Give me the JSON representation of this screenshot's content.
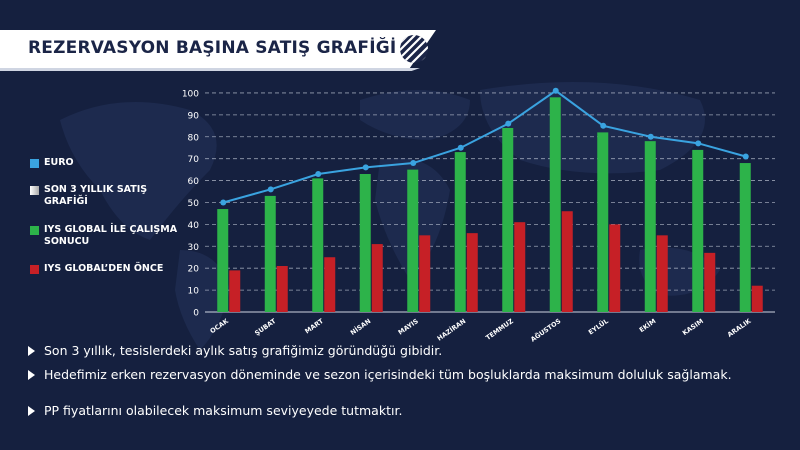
{
  "header": {
    "title": "REZERVASYON BAŞINA SATIŞ GRAFİĞİ"
  },
  "icons": {
    "logo": "globe-logo-icon"
  },
  "legend": [
    {
      "label": "EURO",
      "color": "#3aa3e0"
    },
    {
      "label": "SON 3 YILLIK SATIŞ GRAFİĞİ",
      "color": "#d9d9d9"
    },
    {
      "label": "IYS GLOBAL İLE ÇALIŞMA SONUCU",
      "color": "#2db34a"
    },
    {
      "label": "IYS GLOBAL’DEN ÖNCE",
      "color": "#c62026"
    }
  ],
  "bullets": [
    "Son 3 yıllık, tesislerdeki aylık satış grafiğimiz göründüğü gibidir.",
    "Hedefimiz erken rezervasyon döneminde ve sezon içerisindeki tüm boşluklarda maksimum doluluk sağlamak.",
    "PP fiyatlarını olabilecek maksimum seviyeyede tutmaktır."
  ],
  "chart_data": {
    "type": "bar",
    "categories": [
      "OCAK",
      "ŞUBAT",
      "MART",
      "NİSAN",
      "MAYIS",
      "HAZİRAN",
      "TEMMUZ",
      "AĞUSTOS",
      "EYLÜL",
      "EKİM",
      "KASIM",
      "ARALIK"
    ],
    "series": [
      {
        "name": "IYS GLOBAL İLE ÇALIŞMA SONUCU",
        "type": "bar",
        "color": "#2db34a",
        "values": [
          47,
          53,
          61,
          63,
          65,
          73,
          84,
          98,
          82,
          78,
          74,
          68
        ]
      },
      {
        "name": "IYS GLOBAL’DEN ÖNCE",
        "type": "bar",
        "color": "#c62026",
        "values": [
          19,
          21,
          25,
          31,
          35,
          36,
          41,
          46,
          40,
          35,
          27,
          12
        ]
      },
      {
        "name": "EURO",
        "type": "line",
        "color": "#3aa3e0",
        "values": [
          50,
          56,
          63,
          66,
          68,
          75,
          86,
          101,
          85,
          80,
          77,
          71
        ]
      }
    ],
    "yticks": [
      0,
      10,
      20,
      30,
      40,
      50,
      60,
      70,
      80,
      90,
      100
    ],
    "ylim": [
      0,
      105
    ],
    "grid": true,
    "legend_position": "left"
  }
}
